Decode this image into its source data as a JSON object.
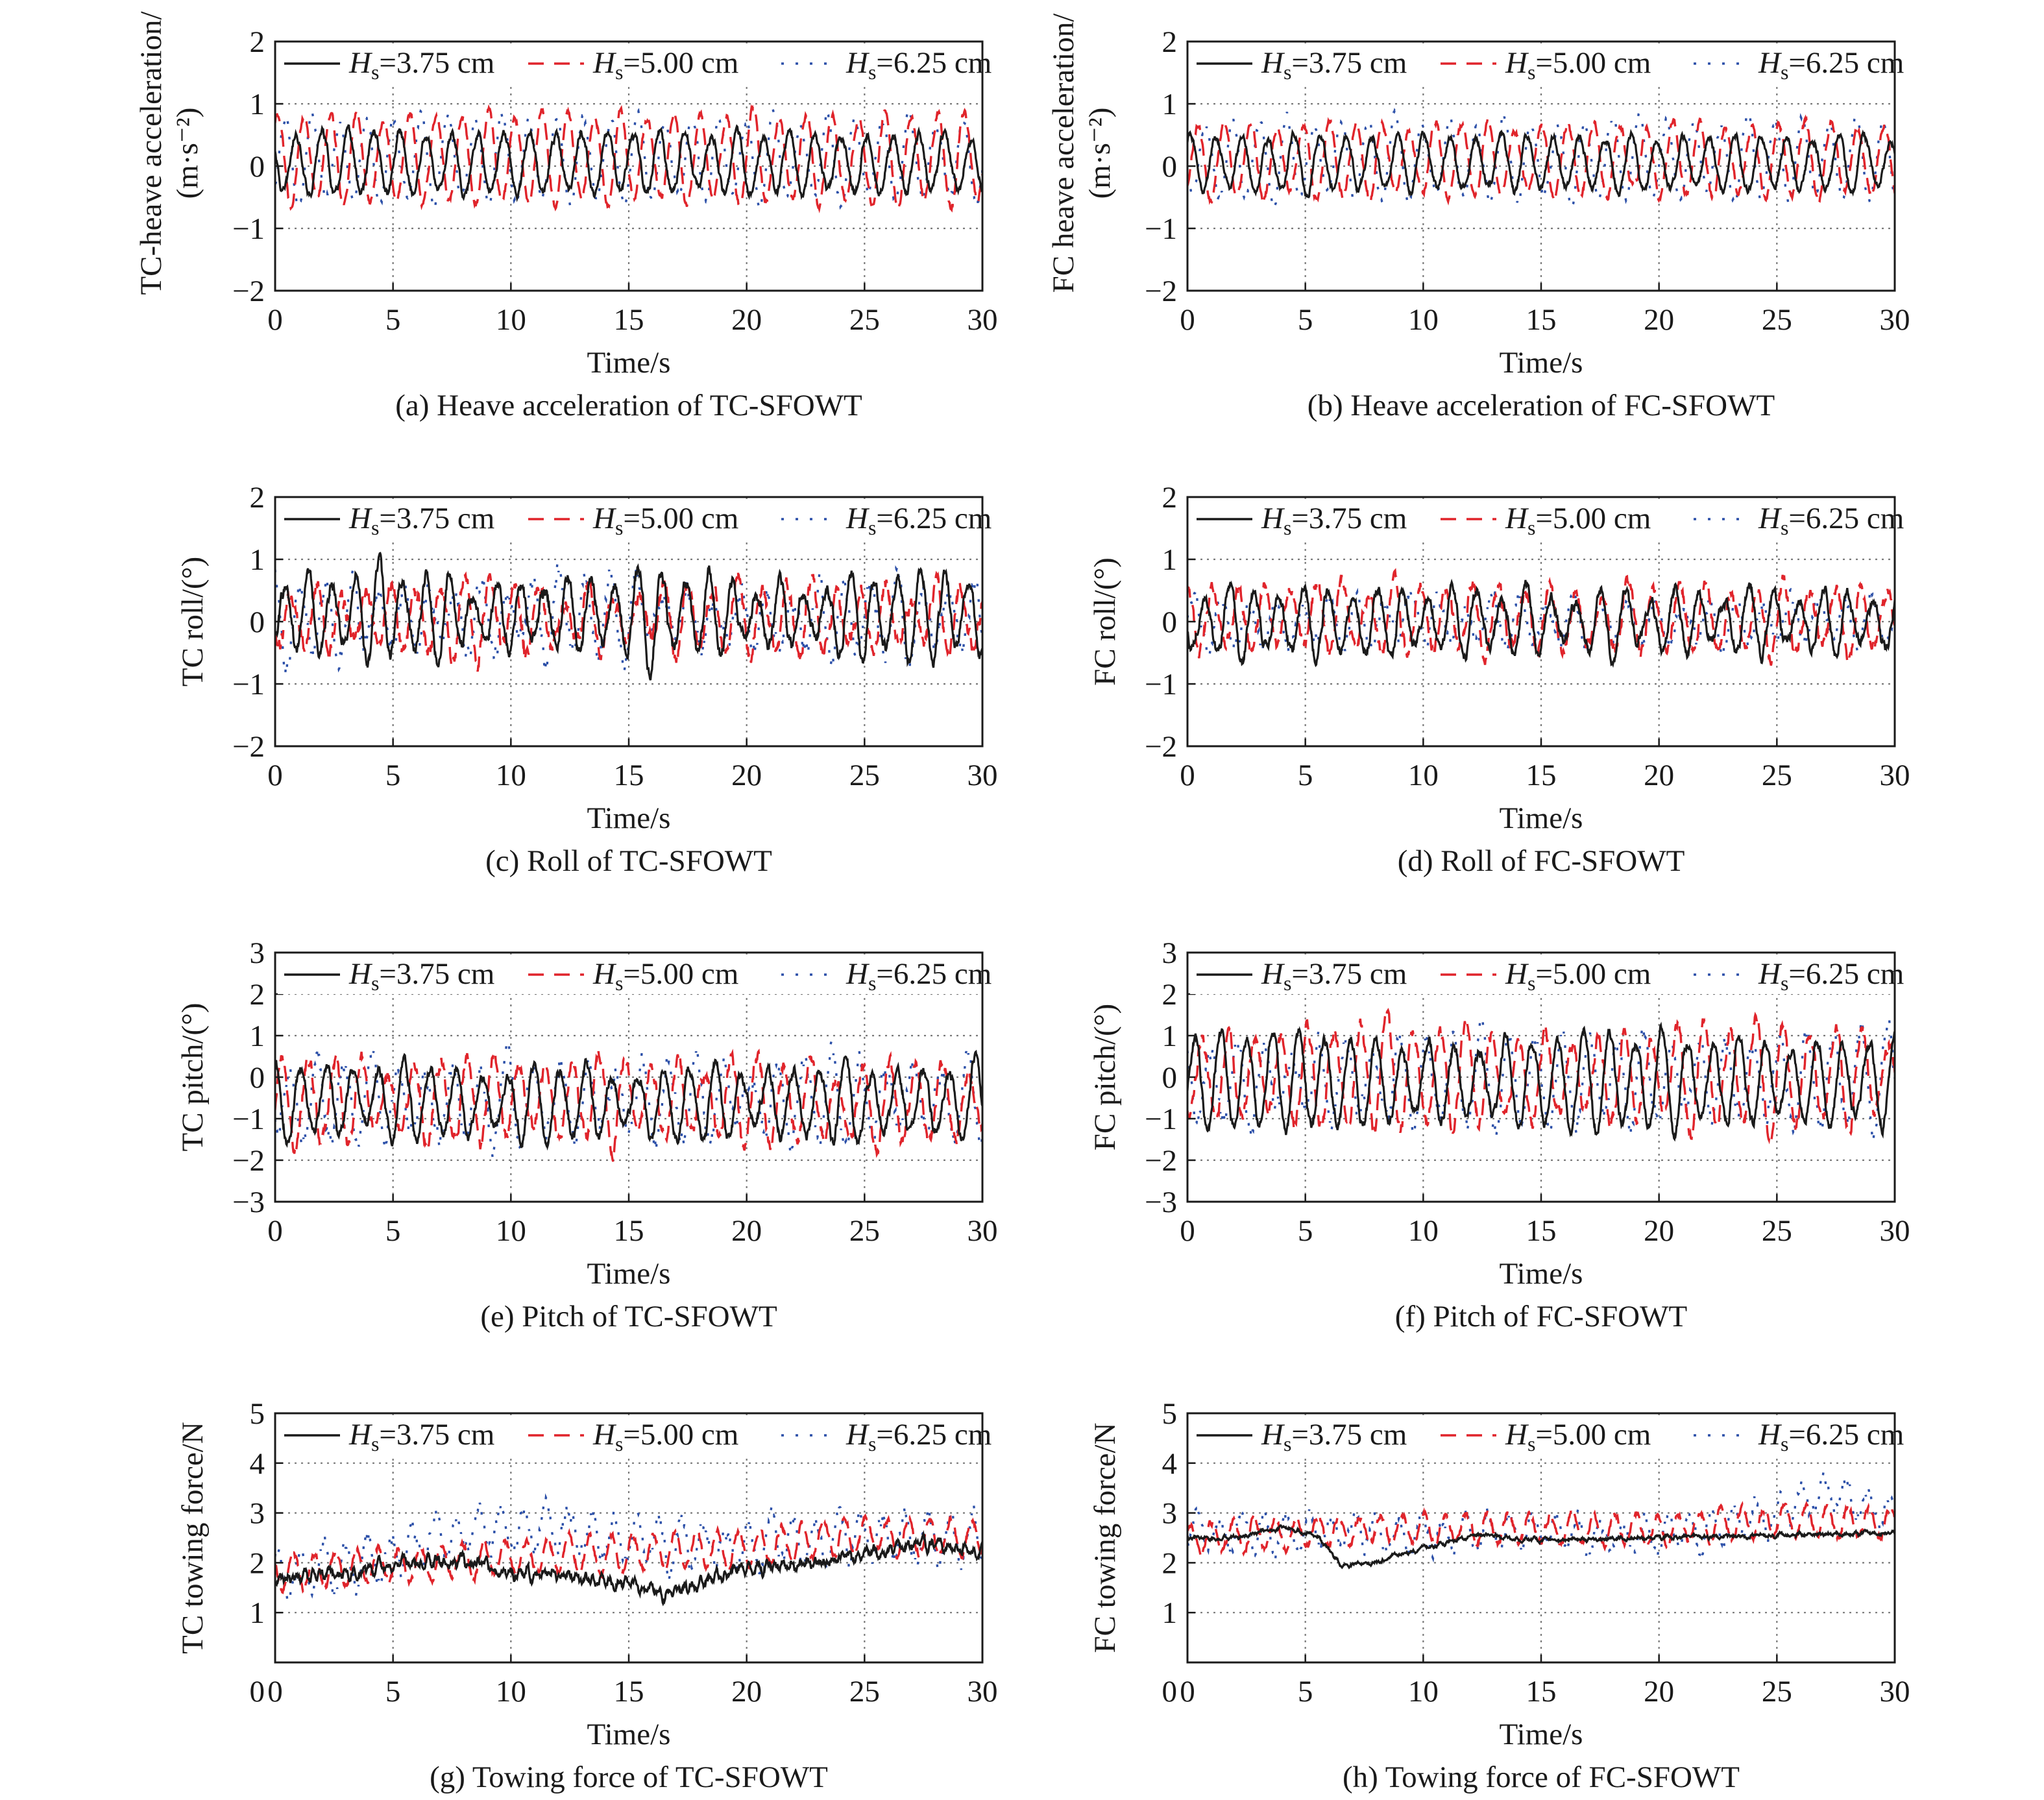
{
  "legend": {
    "entries": [
      {
        "name": "H",
        "sub": "s",
        "value": "=3.75 cm",
        "color": "#1a1a1a",
        "dash": "solid"
      },
      {
        "name": "H",
        "sub": "s",
        "value": "=5.00 cm",
        "color": "#e0242b",
        "dash": "dashed"
      },
      {
        "name": "H",
        "sub": "s",
        "value": "=6.25 cm",
        "color": "#2b4fa8",
        "dash": "dotted"
      }
    ]
  },
  "chart_data": [
    {
      "id": "a",
      "type": "line",
      "caption": "(a) Heave acceleration of TC-SFOWT",
      "xlabel": "Time/s",
      "ylabel_line1": "TC-heave acceleration/",
      "ylabel_line2": "(m·s⁻²)",
      "xlim": [
        0,
        30
      ],
      "ylim": [
        -2,
        2
      ],
      "xticks": [
        "0",
        "5",
        "10",
        "15",
        "20",
        "25",
        "30"
      ],
      "yticks": [
        "2",
        "1",
        "0",
        "−1",
        "−2"
      ],
      "grid": true,
      "legend_position": "top",
      "series": [
        {
          "name": "Hs=3.75 cm",
          "period": 1.1,
          "amplitude": 0.48,
          "offset": 0.05,
          "noise": 0.06,
          "envelope": [
            0.85,
            1.15
          ],
          "drift": []
        },
        {
          "name": "Hs=5.00 cm",
          "period": 1.12,
          "amplitude": 0.62,
          "offset": 0.12,
          "noise": 0.05,
          "envelope": [
            0.8,
            1.25
          ],
          "drift": []
        },
        {
          "name": "Hs=6.25 cm",
          "period": 1.15,
          "amplitude": 0.68,
          "offset": 0.1,
          "noise": 0.06,
          "envelope": [
            0.8,
            1.3
          ],
          "drift": []
        }
      ]
    },
    {
      "id": "b",
      "type": "line",
      "caption": "(b) Heave acceleration of FC-SFOWT",
      "xlabel": "Time/s",
      "ylabel_line1": "FC heave acceleration/",
      "ylabel_line2": "(m·s⁻²)",
      "xlim": [
        0,
        30
      ],
      "ylim": [
        -2,
        2
      ],
      "xticks": [
        "0",
        "5",
        "10",
        "15",
        "20",
        "25",
        "30"
      ],
      "yticks": [
        "2",
        "1",
        "0",
        "−1",
        "−2"
      ],
      "grid": true,
      "legend_position": "top",
      "series": [
        {
          "name": "Hs=3.75 cm",
          "period": 1.1,
          "amplitude": 0.42,
          "offset": 0.05,
          "noise": 0.05,
          "envelope": [
            0.85,
            1.15
          ],
          "drift": []
        },
        {
          "name": "Hs=5.00 cm",
          "period": 1.12,
          "amplitude": 0.55,
          "offset": 0.1,
          "noise": 0.05,
          "envelope": [
            0.85,
            1.2
          ],
          "drift": []
        },
        {
          "name": "Hs=6.25 cm",
          "period": 1.15,
          "amplitude": 0.6,
          "offset": 0.1,
          "noise": 0.06,
          "envelope": [
            0.8,
            1.25
          ],
          "drift": []
        }
      ]
    },
    {
      "id": "c",
      "type": "line",
      "caption": "(c) Roll of TC-SFOWT",
      "xlabel": "Time/s",
      "ylabel_line1": "TC roll/(°)",
      "ylabel_line2": "",
      "xlim": [
        0,
        30
      ],
      "ylim": [
        -2,
        2
      ],
      "xticks": [
        "0",
        "5",
        "10",
        "15",
        "20",
        "25",
        "30"
      ],
      "yticks": [
        "2",
        "1",
        "0",
        "−1",
        "−2"
      ],
      "grid": true,
      "legend_position": "top",
      "series": [
        {
          "name": "Hs=3.75 cm",
          "period": 1.0,
          "amplitude": 0.55,
          "offset": 0.1,
          "noise": 0.1,
          "envelope": [
            0.5,
            1.5
          ],
          "drift": []
        },
        {
          "name": "Hs=5.00 cm",
          "period": 1.05,
          "amplitude": 0.45,
          "offset": 0.05,
          "noise": 0.12,
          "envelope": [
            0.6,
            1.6
          ],
          "drift": []
        },
        {
          "name": "Hs=6.25 cm",
          "period": 1.1,
          "amplitude": 0.4,
          "offset": 0.05,
          "noise": 0.15,
          "envelope": [
            0.6,
            1.8
          ],
          "drift": []
        }
      ]
    },
    {
      "id": "d",
      "type": "line",
      "caption": "(d) Roll of FC-SFOWT",
      "xlabel": "Time/s",
      "ylabel_line1": "FC roll/(°)",
      "ylabel_line2": "",
      "xlim": [
        0,
        30
      ],
      "ylim": [
        -2,
        2
      ],
      "xticks": [
        "0",
        "5",
        "10",
        "15",
        "20",
        "25",
        "30"
      ],
      "yticks": [
        "2",
        "1",
        "0",
        "−1",
        "−2"
      ],
      "grid": true,
      "legend_position": "top",
      "series": [
        {
          "name": "Hs=3.75 cm",
          "period": 1.05,
          "amplitude": 0.55,
          "offset": 0.0,
          "noise": 0.08,
          "envelope": [
            0.5,
            1.6
          ],
          "drift": []
        },
        {
          "name": "Hs=5.00 cm",
          "period": 1.1,
          "amplitude": 0.4,
          "offset": 0.05,
          "noise": 0.1,
          "envelope": [
            0.6,
            1.5
          ],
          "drift": []
        },
        {
          "name": "Hs=6.25 cm",
          "period": 1.15,
          "amplitude": 0.35,
          "offset": 0.0,
          "noise": 0.1,
          "envelope": [
            0.6,
            1.5
          ],
          "drift": []
        }
      ]
    },
    {
      "id": "e",
      "type": "line",
      "caption": "(e) Pitch of TC-SFOWT",
      "xlabel": "Time/s",
      "ylabel_line1": "TC pitch/(°)",
      "ylabel_line2": "",
      "xlim": [
        0,
        30
      ],
      "ylim": [
        -3,
        3
      ],
      "xticks": [
        "0",
        "5",
        "10",
        "15",
        "20",
        "25",
        "30"
      ],
      "yticks": [
        "3",
        "2",
        "1",
        "0",
        "−1",
        "−2",
        "−3"
      ],
      "grid": true,
      "legend_position": "top",
      "series": [
        {
          "name": "Hs=3.75 cm",
          "period": 1.1,
          "amplitude": 0.8,
          "offset": -0.6,
          "noise": 0.12,
          "envelope": [
            0.7,
            1.3
          ],
          "drift": []
        },
        {
          "name": "Hs=5.00 cm",
          "period": 1.12,
          "amplitude": 0.9,
          "offset": -0.6,
          "noise": 0.15,
          "envelope": [
            0.7,
            1.35
          ],
          "drift": []
        },
        {
          "name": "Hs=6.25 cm",
          "period": 1.15,
          "amplitude": 0.8,
          "offset": -0.6,
          "noise": 0.2,
          "envelope": [
            0.7,
            1.5
          ],
          "drift": []
        }
      ]
    },
    {
      "id": "f",
      "type": "line",
      "caption": "(f) Pitch of FC-SFOWT",
      "xlabel": "Time/s",
      "ylabel_line1": "FC pitch/(°)",
      "ylabel_line2": "",
      "xlim": [
        0,
        30
      ],
      "ylim": [
        -3,
        3
      ],
      "xticks": [
        "0",
        "5",
        "10",
        "15",
        "20",
        "25",
        "30"
      ],
      "yticks": [
        "3",
        "2",
        "1",
        "0",
        "−1",
        "−2",
        "−3"
      ],
      "grid": true,
      "legend_position": "top",
      "series": [
        {
          "name": "Hs=3.75 cm",
          "period": 1.1,
          "amplitude": 1.0,
          "offset": -0.1,
          "noise": 0.12,
          "envelope": [
            0.7,
            1.3
          ],
          "drift": []
        },
        {
          "name": "Hs=5.00 cm",
          "period": 1.12,
          "amplitude": 1.05,
          "offset": 0.0,
          "noise": 0.15,
          "envelope": [
            0.7,
            1.35
          ],
          "drift": []
        },
        {
          "name": "Hs=6.25 cm",
          "period": 1.15,
          "amplitude": 0.9,
          "offset": -0.1,
          "noise": 0.2,
          "envelope": [
            0.7,
            1.5
          ],
          "drift": []
        }
      ]
    },
    {
      "id": "g",
      "type": "line",
      "caption": "(g) Towing force of TC-SFOWT",
      "xlabel": "Time/s",
      "ylabel_line1": "TC towing force/N",
      "ylabel_line2": "",
      "xlim": [
        0,
        30
      ],
      "ylim": [
        0,
        5
      ],
      "xticks": [
        "0",
        "5",
        "10",
        "15",
        "20",
        "25",
        "30"
      ],
      "yticks": [
        "5",
        "4",
        "3",
        "2",
        "1",
        ""
      ],
      "grid": true,
      "legend_position": "top",
      "series": [
        {
          "name": "Hs=3.75 cm",
          "period": 0.35,
          "amplitude": 0.07,
          "offset": 0.0,
          "noise": 0.08,
          "envelope": [
            1,
            1
          ],
          "drift": [
            [
              0,
              1.7
            ],
            [
              3,
              1.75
            ],
            [
              5,
              1.95
            ],
            [
              8,
              2.05
            ],
            [
              10,
              1.8
            ],
            [
              13,
              1.7
            ],
            [
              15,
              1.55
            ],
            [
              16.5,
              1.35
            ],
            [
              18,
              1.6
            ],
            [
              20,
              1.9
            ],
            [
              23,
              2.0
            ],
            [
              25,
              2.15
            ],
            [
              27,
              2.35
            ],
            [
              30,
              2.25
            ]
          ]
        },
        {
          "name": "Hs=5.00 cm",
          "period": 0.9,
          "amplitude": 0.35,
          "offset": 0.0,
          "noise": 0.06,
          "envelope": [
            1,
            1
          ],
          "drift": [
            [
              0,
              1.8
            ],
            [
              5,
              1.95
            ],
            [
              10,
              2.1
            ],
            [
              15,
              2.2
            ],
            [
              20,
              2.3
            ],
            [
              25,
              2.55
            ],
            [
              30,
              2.5
            ]
          ]
        },
        {
          "name": "Hs=6.25 cm",
          "period": 0.95,
          "amplitude": 0.45,
          "offset": 0.0,
          "noise": 0.15,
          "envelope": [
            1,
            1
          ],
          "drift": [
            [
              0,
              1.7
            ],
            [
              5,
              2.2
            ],
            [
              8,
              2.6
            ],
            [
              11,
              2.8
            ],
            [
              15,
              2.4
            ],
            [
              20,
              2.4
            ],
            [
              25,
              2.5
            ],
            [
              30,
              2.5
            ]
          ]
        }
      ]
    },
    {
      "id": "h",
      "type": "line",
      "caption": "(h) Towing force of FC-SFOWT",
      "xlabel": "Time/s",
      "ylabel_line1": "FC towing force/N",
      "ylabel_line2": "",
      "xlim": [
        0,
        30
      ],
      "ylim": [
        0,
        5
      ],
      "xticks": [
        "0",
        "5",
        "10",
        "15",
        "20",
        "25",
        "30"
      ],
      "yticks": [
        "5",
        "4",
        "3",
        "2",
        "1",
        ""
      ],
      "grid": true,
      "legend_position": "top",
      "series": [
        {
          "name": "Hs=3.75 cm",
          "period": 0.4,
          "amplitude": 0.02,
          "offset": 0.0,
          "noise": 0.03,
          "envelope": [
            1,
            1
          ],
          "drift": [
            [
              0,
              2.5
            ],
            [
              2,
              2.5
            ],
            [
              4,
              2.7
            ],
            [
              5.5,
              2.55
            ],
            [
              6.5,
              1.95
            ],
            [
              8,
              2.0
            ],
            [
              10,
              2.3
            ],
            [
              12,
              2.55
            ],
            [
              15,
              2.45
            ],
            [
              20,
              2.5
            ],
            [
              25,
              2.55
            ],
            [
              30,
              2.6
            ]
          ]
        },
        {
          "name": "Hs=5.00 cm",
          "period": 0.9,
          "amplitude": 0.3,
          "offset": 0.0,
          "noise": 0.06,
          "envelope": [
            1,
            1
          ],
          "drift": [
            [
              0,
              2.5
            ],
            [
              5,
              2.6
            ],
            [
              10,
              2.7
            ],
            [
              15,
              2.7
            ],
            [
              20,
              2.65
            ],
            [
              25,
              2.85
            ],
            [
              30,
              2.8
            ]
          ]
        },
        {
          "name": "Hs=6.25 cm",
          "period": 0.95,
          "amplitude": 0.35,
          "offset": 0.0,
          "noise": 0.12,
          "envelope": [
            1,
            1
          ],
          "drift": [
            [
              0,
              2.6
            ],
            [
              5,
              2.6
            ],
            [
              10,
              2.6
            ],
            [
              15,
              2.6
            ],
            [
              20,
              2.5
            ],
            [
              25,
              3.0
            ],
            [
              27,
              3.4
            ],
            [
              30,
              3.0
            ]
          ]
        }
      ]
    }
  ]
}
